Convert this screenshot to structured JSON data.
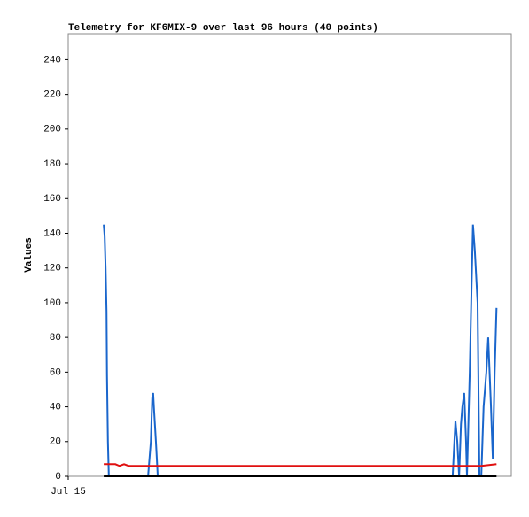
{
  "chart_data": {
    "type": "line",
    "title": "Telemetry for KF6MIX-9 over last 96 hours (40 points)",
    "y_label": "Values",
    "xlim": [
      0,
      96
    ],
    "xticks": [
      {
        "value": 0,
        "label": "Jul 15"
      }
    ],
    "ylim": [
      0,
      255
    ],
    "yticks": [
      0,
      20,
      40,
      60,
      80,
      100,
      120,
      140,
      160,
      180,
      200,
      220,
      240
    ],
    "series": [
      {
        "color": "#1a66cc",
        "x": [
          7.7,
          7.9,
          8.1,
          8.3,
          8.4,
          8.6,
          8.8,
          17.3,
          17.9,
          18.2,
          18.4,
          18.6,
          19.0,
          19.4,
          83.3,
          83.9,
          84.3,
          84.7,
          85.1,
          85.4,
          85.8,
          86.2,
          86.4,
          87.0,
          87.4,
          87.7,
          88.1,
          88.7,
          89.1,
          89.5,
          90.0,
          90.6,
          91.0,
          91.6,
          92.0,
          92.4,
          92.8
        ],
        "values": [
          145,
          138,
          120,
          95,
          58,
          20,
          0,
          0,
          20,
          45,
          48,
          38,
          20,
          0,
          0,
          32,
          20,
          0,
          30,
          40,
          48,
          20,
          0,
          60,
          110,
          145,
          130,
          100,
          0,
          0,
          40,
          60,
          80,
          40,
          10,
          60,
          97
        ]
      },
      {
        "color": "#e01010",
        "x": [
          7.7,
          10.2,
          11.1,
          12.1,
          13.1,
          89.5,
          92.8
        ],
        "values": [
          7,
          7,
          6,
          7,
          6,
          6,
          7
        ]
      },
      {
        "color": "#000000",
        "x": [
          7.7,
          92.8
        ],
        "values": [
          0,
          0
        ]
      }
    ]
  }
}
